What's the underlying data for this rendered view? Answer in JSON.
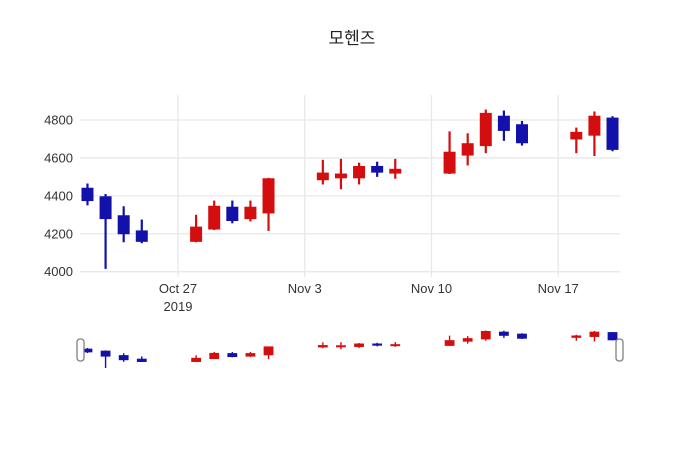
{
  "title": "모헨즈",
  "chart_data": {
    "type": "candlestick",
    "title": "모헨즈",
    "legend": false,
    "grid": true,
    "background": "#ffffff",
    "colors": {
      "increasing": "#d40e0e",
      "decreasing": "#1212aa",
      "gridline": "#e8e8e8",
      "tick_text": "#333333",
      "title_text": "#222222",
      "slider_handle_fill": "#ffffff",
      "slider_handle_border": "#7f7f7f"
    },
    "y_axis": {
      "tick_values": [
        4000,
        4200,
        4400,
        4600,
        4800
      ],
      "tick_labels": [
        "4000",
        "4200",
        "4400",
        "4600",
        "4800"
      ]
    },
    "x_axis": {
      "ticks": [
        {
          "label": "Oct 27",
          "sublabel": "2019",
          "date": "2019-10-27"
        },
        {
          "label": "Nov 3",
          "sublabel": "",
          "date": "2019-11-03"
        },
        {
          "label": "Nov 10",
          "sublabel": "",
          "date": "2019-11-10"
        },
        {
          "label": "Nov 17",
          "sublabel": "",
          "date": "2019-11-17"
        }
      ]
    },
    "rangeslider": {
      "enabled": true
    },
    "candles": [
      {
        "date": "2019-10-22",
        "open": 4440,
        "high": 4465,
        "low": 4350,
        "close": 4375
      },
      {
        "date": "2019-10-23",
        "open": 4395,
        "high": 4410,
        "low": 4015,
        "close": 4280
      },
      {
        "date": "2019-10-24",
        "open": 4295,
        "high": 4345,
        "low": 4155,
        "close": 4200
      },
      {
        "date": "2019-10-25",
        "open": 4215,
        "high": 4275,
        "low": 4150,
        "close": 4160
      },
      {
        "date": "2019-10-28",
        "open": 4160,
        "high": 4300,
        "low": 4155,
        "close": 4235
      },
      {
        "date": "2019-10-29",
        "open": 4225,
        "high": 4375,
        "low": 4220,
        "close": 4345
      },
      {
        "date": "2019-10-30",
        "open": 4340,
        "high": 4375,
        "low": 4255,
        "close": 4270
      },
      {
        "date": "2019-10-31",
        "open": 4280,
        "high": 4375,
        "low": 4265,
        "close": 4340
      },
      {
        "date": "2019-11-01",
        "open": 4310,
        "high": 4495,
        "low": 4215,
        "close": 4490
      },
      {
        "date": "2019-11-04",
        "open": 4485,
        "high": 4590,
        "low": 4460,
        "close": 4520
      },
      {
        "date": "2019-11-05",
        "open": 4495,
        "high": 4595,
        "low": 4435,
        "close": 4515
      },
      {
        "date": "2019-11-06",
        "open": 4495,
        "high": 4575,
        "low": 4460,
        "close": 4555
      },
      {
        "date": "2019-11-07",
        "open": 4555,
        "high": 4580,
        "low": 4500,
        "close": 4525
      },
      {
        "date": "2019-11-08",
        "open": 4520,
        "high": 4595,
        "low": 4490,
        "close": 4540
      },
      {
        "date": "2019-11-11",
        "open": 4520,
        "high": 4740,
        "low": 4515,
        "close": 4630
      },
      {
        "date": "2019-11-12",
        "open": 4615,
        "high": 4730,
        "low": 4560,
        "close": 4675
      },
      {
        "date": "2019-11-13",
        "open": 4665,
        "high": 4855,
        "low": 4625,
        "close": 4835
      },
      {
        "date": "2019-11-14",
        "open": 4820,
        "high": 4850,
        "low": 4690,
        "close": 4745
      },
      {
        "date": "2019-11-15",
        "open": 4775,
        "high": 4795,
        "low": 4665,
        "close": 4680
      },
      {
        "date": "2019-11-18",
        "open": 4700,
        "high": 4760,
        "low": 4625,
        "close": 4735
      },
      {
        "date": "2019-11-19",
        "open": 4720,
        "high": 4845,
        "low": 4610,
        "close": 4820
      },
      {
        "date": "2019-11-20",
        "open": 4810,
        "high": 4820,
        "low": 4635,
        "close": 4645
      }
    ]
  }
}
